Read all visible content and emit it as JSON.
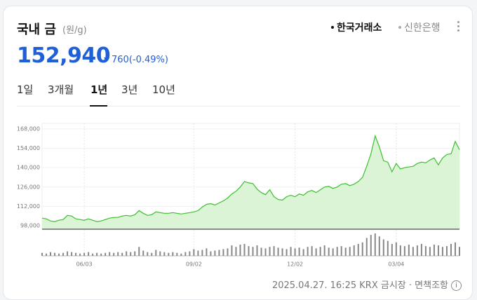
{
  "header": {
    "title": "국내 금",
    "unit": "(원/g)",
    "sources": [
      "한국거래소",
      "신한은행"
    ],
    "price": "152,940",
    "change": "760",
    "change_rate": "(-0.49%)"
  },
  "tabs": [
    "1일",
    "3개월",
    "1년",
    "3년",
    "10년"
  ],
  "footer": {
    "time": "2025.04.27. 16:25",
    "market": "KRX 금시장",
    "disclaimer": "면책조항"
  },
  "chart_data": [
    {
      "type": "area",
      "color": "#3cbf2f",
      "fill": "#dcf4d6",
      "ylim": [
        95500,
        172000
      ],
      "yticks": [
        {
          "value": 98000,
          "label": "98,000"
        },
        {
          "value": 112000,
          "label": "112,000"
        },
        {
          "value": 126000,
          "label": "126,000"
        },
        {
          "value": 140000,
          "label": "140,000"
        },
        {
          "value": 154000,
          "label": "154,000"
        },
        {
          "value": 168000,
          "label": "168,000"
        }
      ],
      "categories": [
        null,
        null,
        null,
        null,
        null,
        null,
        null,
        null,
        null,
        null,
        "06/03",
        null,
        null,
        null,
        null,
        null,
        null,
        null,
        null,
        null,
        null,
        null,
        null,
        null,
        null,
        null,
        null,
        null,
        null,
        null,
        null,
        null,
        null,
        null,
        null,
        null,
        "09/02",
        null,
        null,
        null,
        null,
        null,
        null,
        null,
        null,
        null,
        null,
        null,
        null,
        null,
        null,
        null,
        null,
        null,
        null,
        null,
        null,
        null,
        null,
        null,
        "12/02",
        null,
        null,
        null,
        null,
        null,
        null,
        null,
        null,
        null,
        null,
        null,
        null,
        null,
        null,
        null,
        null,
        null,
        null,
        null,
        null,
        null,
        null,
        null,
        "03/04",
        null,
        null,
        null,
        null,
        null,
        null,
        null,
        null,
        null,
        null,
        null,
        null,
        null,
        null,
        null
      ],
      "values": [
        103500,
        103000,
        101500,
        101000,
        102000,
        102500,
        105500,
        105000,
        103000,
        102500,
        102000,
        103000,
        102000,
        101000,
        101500,
        102500,
        103500,
        104000,
        104000,
        105000,
        105500,
        105000,
        106000,
        109000,
        107000,
        105500,
        106000,
        108000,
        107500,
        107000,
        107000,
        107500,
        107000,
        106500,
        107000,
        107500,
        108000,
        109000,
        111500,
        113500,
        114000,
        113000,
        114500,
        116000,
        118000,
        121000,
        123000,
        126000,
        130000,
        129000,
        128500,
        124500,
        122000,
        120500,
        124000,
        119000,
        117000,
        116500,
        119000,
        120000,
        119000,
        121000,
        120000,
        122500,
        123500,
        122000,
        124000,
        126000,
        126500,
        125000,
        126000,
        128000,
        128500,
        127000,
        128000,
        130000,
        133000,
        141000,
        150000,
        163000,
        155000,
        145000,
        144000,
        137000,
        143000,
        139000,
        140000,
        140500,
        141000,
        143000,
        144000,
        143500,
        145500,
        147000,
        142000,
        147000,
        149500,
        150000,
        159000,
        152940
      ]
    },
    {
      "type": "bar",
      "color": "#888888",
      "values": [
        4,
        3,
        5,
        4,
        3,
        4,
        6,
        5,
        4,
        3,
        4,
        5,
        3,
        4,
        3,
        4,
        5,
        4,
        5,
        4,
        6,
        5,
        6,
        12,
        7,
        5,
        4,
        8,
        6,
        5,
        4,
        5,
        4,
        3,
        5,
        6,
        9,
        7,
        8,
        10,
        6,
        7,
        8,
        9,
        10,
        14,
        12,
        15,
        16,
        13,
        12,
        14,
        11,
        10,
        12,
        13,
        11,
        10,
        9,
        12,
        10,
        11,
        9,
        12,
        13,
        10,
        12,
        14,
        11,
        10,
        12,
        13,
        11,
        12,
        14,
        16,
        18,
        24,
        28,
        30,
        26,
        22,
        20,
        16,
        18,
        14,
        13,
        15,
        12,
        14,
        16,
        13,
        12,
        15,
        14,
        12,
        13,
        16,
        18,
        12
      ]
    }
  ]
}
